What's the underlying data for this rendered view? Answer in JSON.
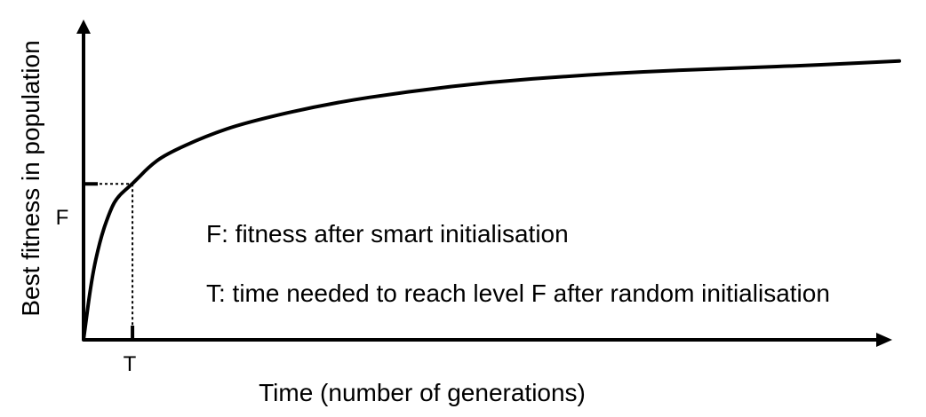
{
  "chart_data": {
    "type": "line",
    "xlabel": "Time (number of generations)",
    "ylabel": "Best fitness in population",
    "x_tick_labels": [
      "T"
    ],
    "y_tick_labels": [
      "F"
    ],
    "annotations": [
      "F: fitness after smart initialisation",
      "T: time needed to reach level F after random initialisation"
    ],
    "grid": false,
    "series": [
      {
        "curve_points": [
          [
            0.0,
            0.0
          ],
          [
            0.01,
            0.2
          ],
          [
            0.02,
            0.32
          ],
          [
            0.03,
            0.4
          ],
          [
            0.04,
            0.46
          ],
          [
            0.06,
            0.505
          ],
          [
            0.08,
            0.56
          ],
          [
            0.1,
            0.6
          ],
          [
            0.15,
            0.66
          ],
          [
            0.2,
            0.705
          ],
          [
            0.3,
            0.765
          ],
          [
            0.4,
            0.805
          ],
          [
            0.5,
            0.835
          ],
          [
            0.6,
            0.855
          ],
          [
            0.7,
            0.87
          ],
          [
            0.8,
            0.88
          ],
          [
            0.9,
            0.89
          ],
          [
            1.0,
            0.903
          ]
        ]
      }
    ],
    "marker": {
      "x": 0.06,
      "y": 0.505
    }
  }
}
